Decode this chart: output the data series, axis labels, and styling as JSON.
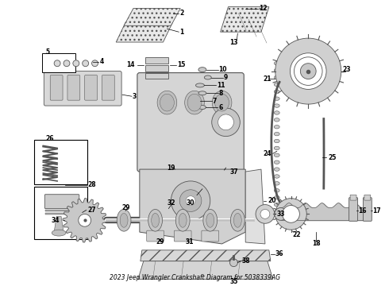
{
  "title": "2023 Jeep Wrangler Crankshaft Diagram for 5038339AG",
  "background_color": "#ffffff",
  "fig_width": 4.9,
  "fig_height": 3.6,
  "dpi": 100,
  "label_fontsize": 5.5,
  "arrow_lw": 0.5,
  "part_color": "#d0d0d0",
  "part_edge": "#555555",
  "part_lw": 0.6,
  "chain_color": "#888888",
  "text_color": "#000000"
}
